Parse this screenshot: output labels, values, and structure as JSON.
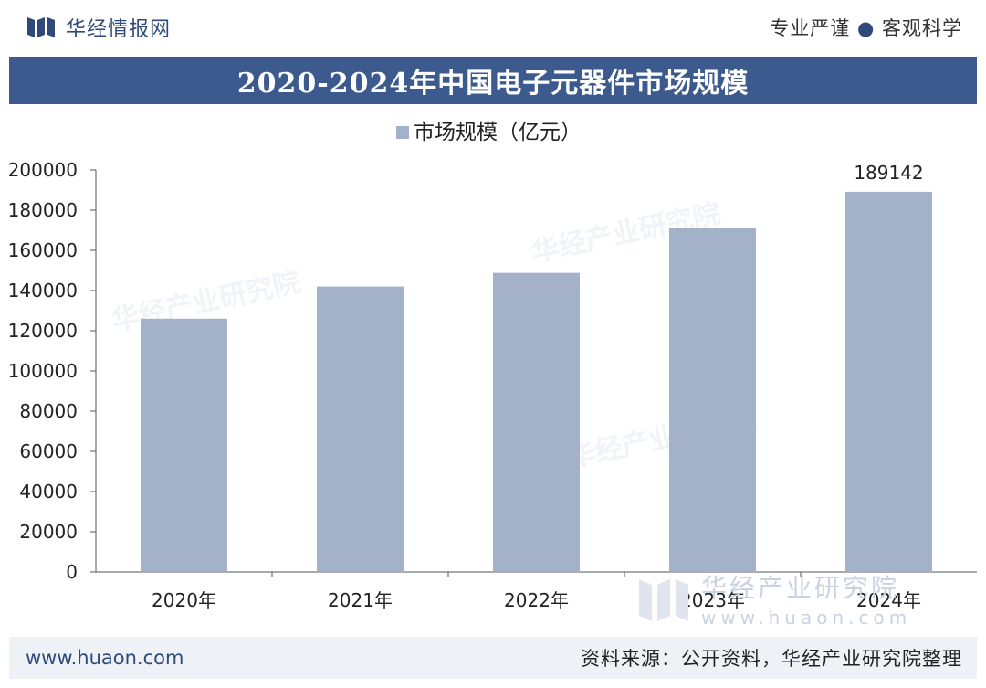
{
  "header": {
    "brand_name": "华经情报网",
    "slogan_left": "专业严谨",
    "slogan_dot": "●",
    "slogan_right": "客观科学"
  },
  "title": "2020-2024年中国电子元器件市场规模",
  "footer": {
    "site": "www.huaon.com",
    "source": "资料来源：公开资料，华经产业研究院整理"
  },
  "watermark": {
    "text": "华经产业研究院",
    "url": "www.huaon.com"
  },
  "colors": {
    "bar": "#a3b1c9",
    "title_bg": "#3d5a8f",
    "brand": "#2f4a7a"
  },
  "chart_data": {
    "type": "bar",
    "categories": [
      "2020年",
      "2021年",
      "2022年",
      "2023年",
      "2024年"
    ],
    "series": [
      {
        "name": "市场规模（亿元）",
        "values": [
          126000,
          142000,
          148800,
          171000,
          189142
        ]
      }
    ],
    "data_labels": [
      null,
      null,
      null,
      null,
      "189142"
    ],
    "ylim": [
      0,
      200000
    ],
    "yticks": [
      "0",
      "20000",
      "40000",
      "60000",
      "80000",
      "100000",
      "120000",
      "140000",
      "160000",
      "180000",
      "200000"
    ],
    "legend_position": "top-center",
    "grid": false
  }
}
